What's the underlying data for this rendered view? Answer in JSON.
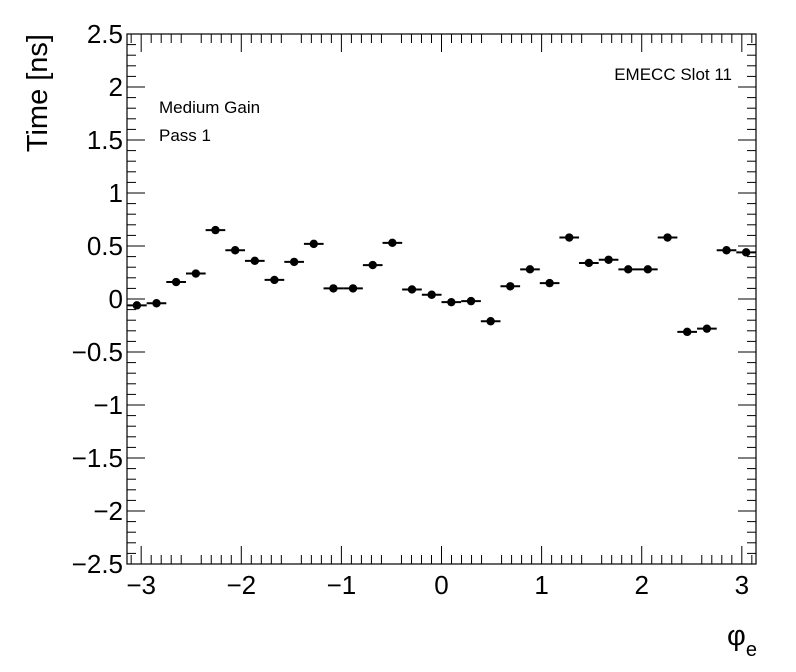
{
  "chart_data": {
    "type": "scatter",
    "title": "",
    "xlabel": "φ",
    "xlabel_sub": "e",
    "ylabel": "Time [ns]",
    "xlim": [
      -3.1416,
      3.1416
    ],
    "ylim": [
      -2.5,
      2.5
    ],
    "x_ticks": [
      -3,
      -2,
      -1,
      0,
      1,
      2,
      3
    ],
    "x_tick_labels": [
      "−3",
      "−2",
      "−1",
      "0",
      "1",
      "2",
      "3"
    ],
    "y_ticks": [
      -2.5,
      -2,
      -1.5,
      -1,
      -0.5,
      0,
      0.5,
      1,
      1.5,
      2,
      2.5
    ],
    "y_tick_labels": [
      "−2.5",
      "−2",
      "−1.5",
      "−1",
      "−0.5",
      "0",
      "0.5",
      "1",
      "1.5",
      "2",
      "2.5"
    ],
    "x_bin_half_width": 0.0982,
    "grid": false,
    "legend": "none",
    "marker_color": "#000000",
    "annotations": {
      "top_right": "EMECC Slot 11",
      "line1": "Medium Gain",
      "line2": "Pass 1"
    },
    "x": [
      -3.043,
      -2.847,
      -2.651,
      -2.454,
      -2.258,
      -2.061,
      -1.865,
      -1.669,
      -1.472,
      -1.276,
      -1.08,
      -0.884,
      -0.687,
      -0.491,
      -0.295,
      -0.098,
      0.098,
      0.295,
      0.491,
      0.687,
      0.884,
      1.08,
      1.276,
      1.472,
      1.669,
      1.865,
      2.061,
      2.258,
      2.454,
      2.651,
      2.847,
      3.043
    ],
    "y": [
      -0.06,
      -0.04,
      0.16,
      0.24,
      0.65,
      0.46,
      0.36,
      0.18,
      0.35,
      0.52,
      0.1,
      0.1,
      0.32,
      0.53,
      0.09,
      0.04,
      -0.03,
      -0.02,
      -0.21,
      0.12,
      0.28,
      0.15,
      0.58,
      0.34,
      0.37,
      0.28,
      0.28,
      0.58,
      -0.31,
      -0.28,
      0.46,
      0.44
    ]
  }
}
